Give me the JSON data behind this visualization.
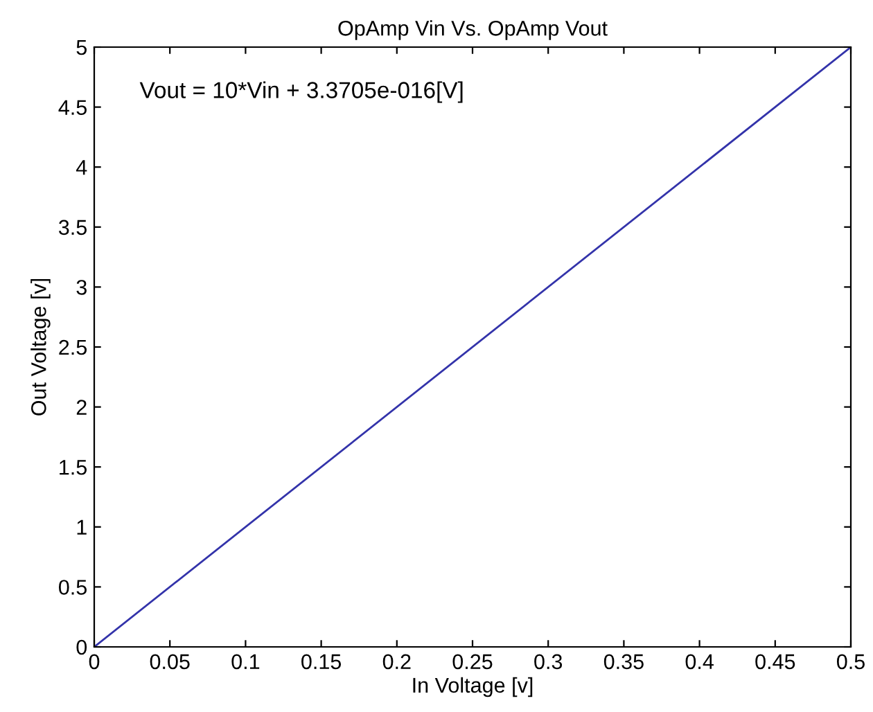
{
  "chart_data": {
    "type": "line",
    "title": "OpAmp Vin Vs. OpAmp Vout",
    "xlabel": "In Voltage [v]",
    "ylabel": "Out Voltage [v]",
    "x": [
      0,
      0.5
    ],
    "series": [
      {
        "color": "#3333aa",
        "values": [
          0,
          5
        ]
      }
    ],
    "annotations": [
      "Vout = 10*Vin + 3.3705e-016[V]"
    ],
    "xlim": [
      0,
      0.5
    ],
    "xticks": [
      0,
      0.05,
      0.1,
      0.15,
      0.2,
      0.25,
      0.3,
      0.35,
      0.4,
      0.45,
      0.5
    ],
    "ylim": [
      0,
      5
    ],
    "yticks": [
      0,
      0.5,
      1,
      1.5,
      2,
      2.5,
      3,
      3.5,
      4,
      4.5,
      5
    ],
    "grid": false,
    "legend": false
  }
}
